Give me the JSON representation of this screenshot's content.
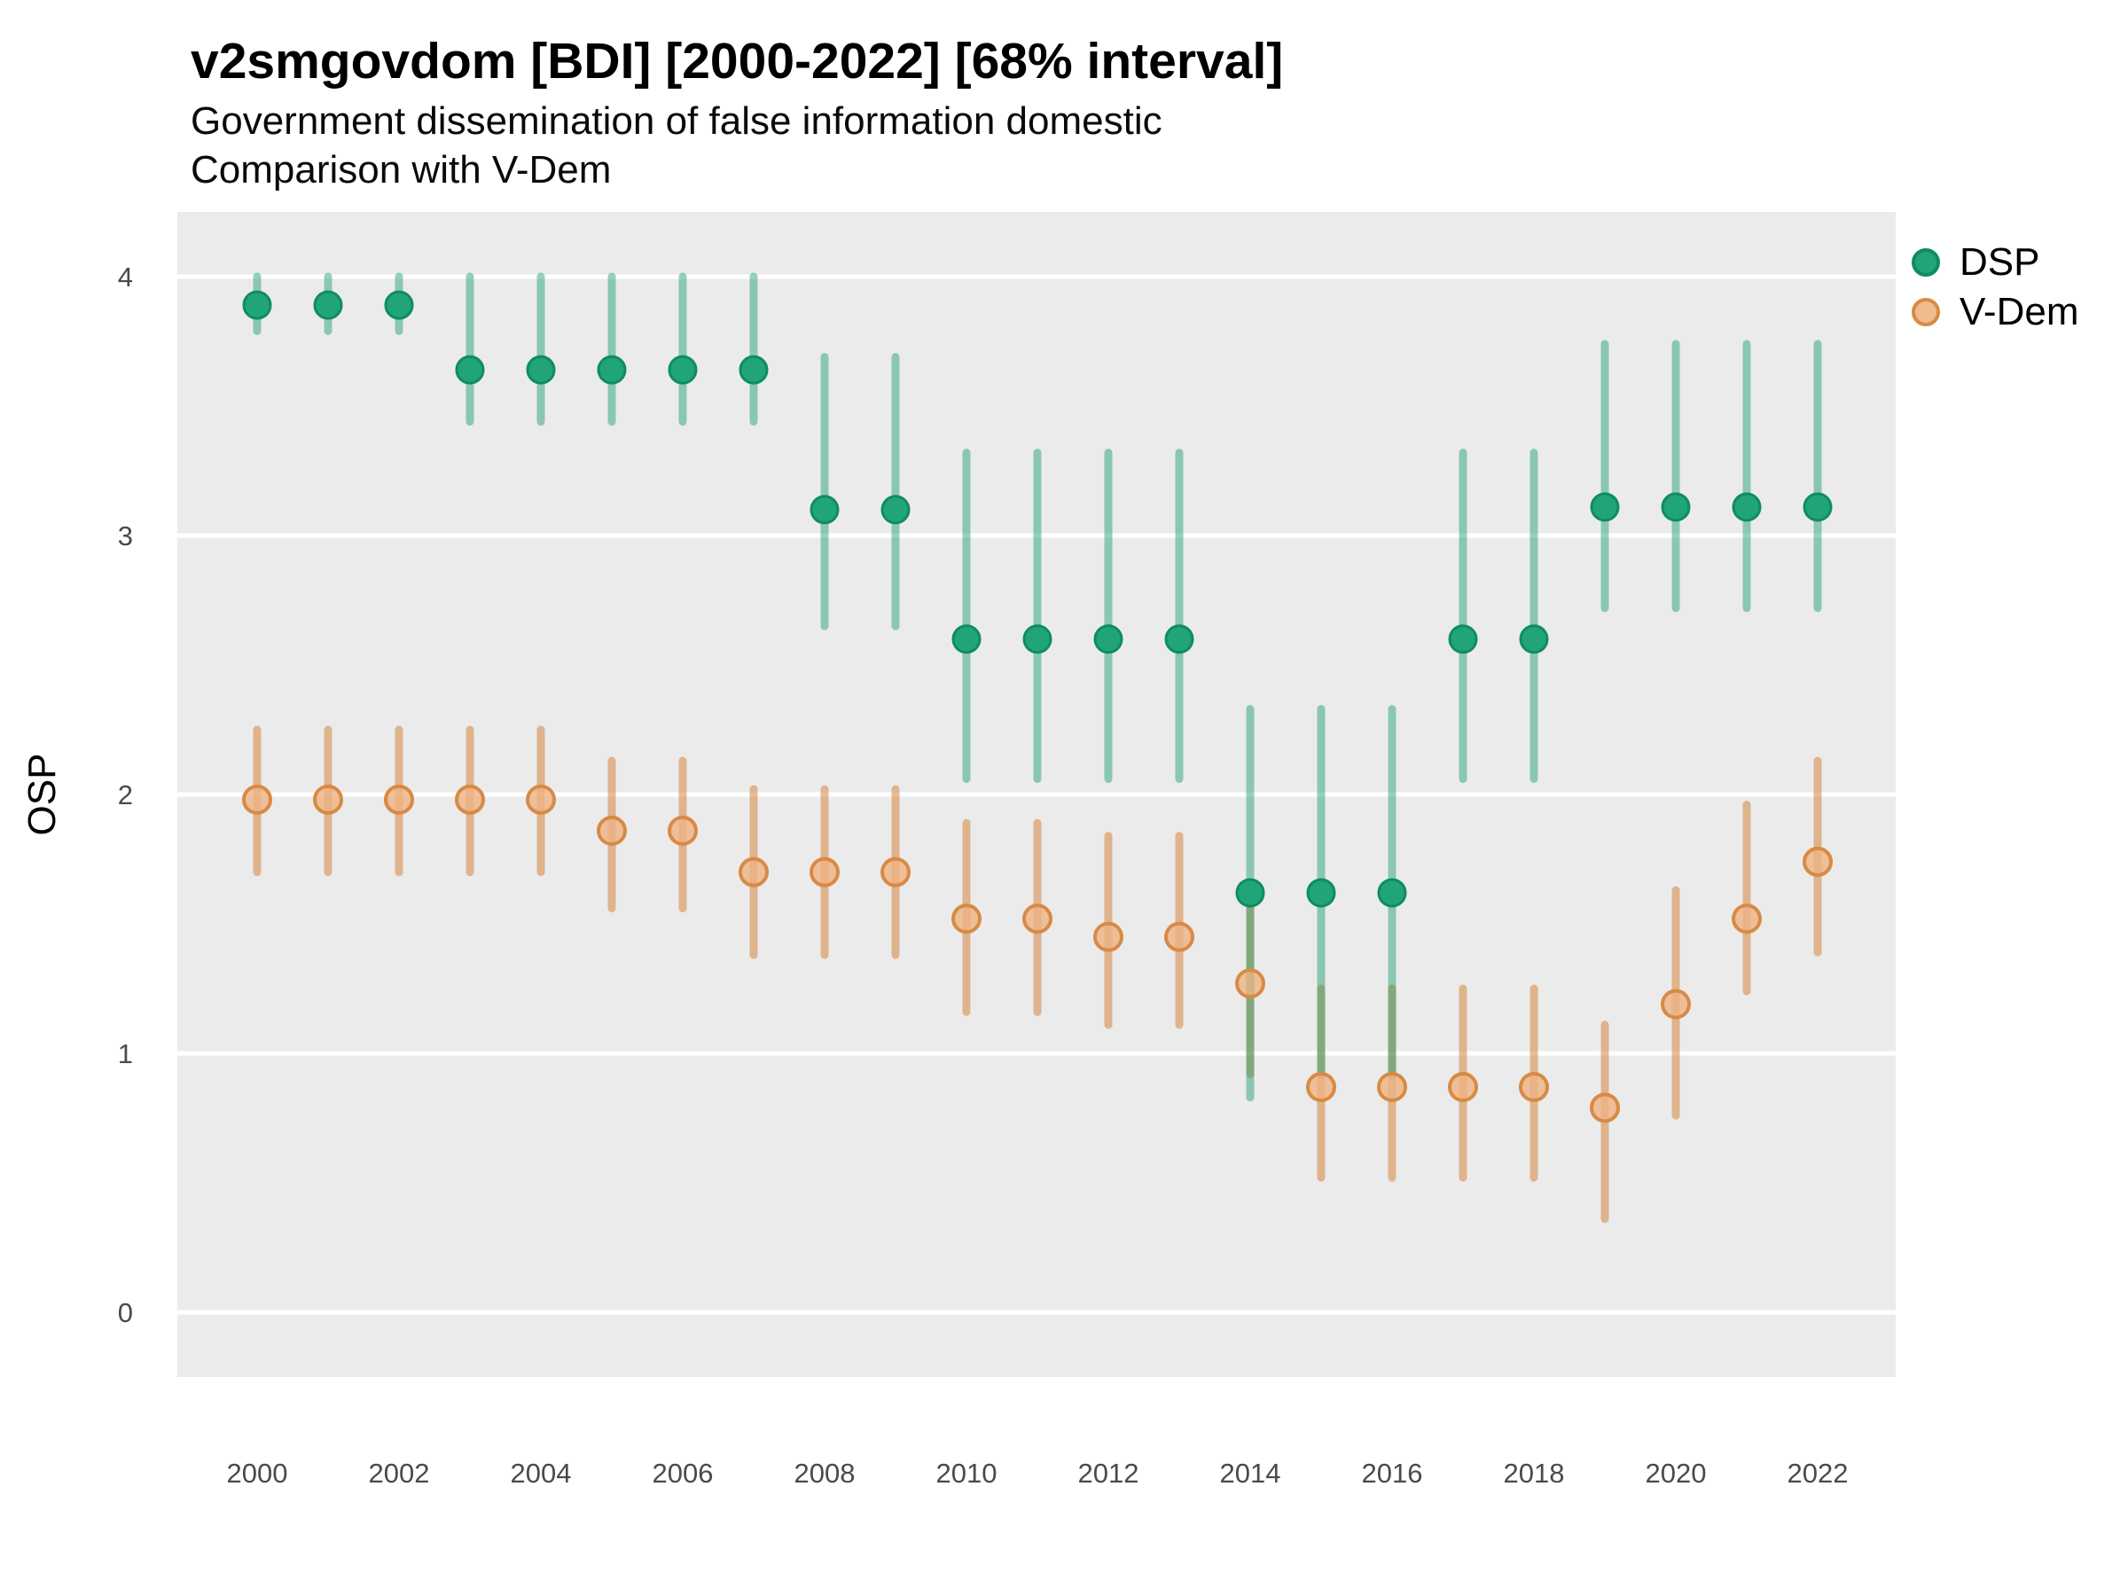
{
  "title": "v2smgovdom [BDI] [2000-2022] [68% interval]",
  "subtitle": [
    "Government dissemination of false information domestic",
    "Comparison with V-Dem"
  ],
  "axes": {
    "y_label": "OSP",
    "y_ticks": [
      4,
      3,
      2,
      1,
      0
    ],
    "x_ticks": [
      2000,
      2002,
      2004,
      2006,
      2008,
      2010,
      2012,
      2014,
      2016,
      2018,
      2020,
      2022
    ]
  },
  "legend": {
    "items": [
      {
        "id": "dsp",
        "label": "DSP",
        "fill": "#21a478",
        "stroke": "#0f8c61"
      },
      {
        "id": "vdem",
        "label": "V-Dem",
        "fill": "#f0bb8f",
        "stroke": "#d88a44"
      }
    ]
  },
  "colors": {
    "panel_background": "#ebebeb",
    "gridline": "#ffffff",
    "axis_text": "#4a4a4a",
    "text": "#000000",
    "dsp_point_fill": "#21a478",
    "dsp_point_stroke": "#0f8c61",
    "dsp_interval": "rgba(21,156,106,0.45)",
    "vdem_point_fill": "#edb383",
    "vdem_point_stroke": "#d88a44",
    "vdem_interval": "rgba(214,133,62,0.55)"
  },
  "chart_data": {
    "type": "scatter",
    "subtype": "pointrange",
    "interval": "68%",
    "title": "v2smgovdom [BDI] [2000-2022] [68% interval]",
    "xlabel": "",
    "ylabel": "OSP",
    "xlim": [
      1998.9,
      2023.1
    ],
    "ylim": [
      -0.25,
      4.25
    ],
    "grid": "major-y only, white on gray panel",
    "legend_position": "right-top",
    "x": [
      2000,
      2001,
      2002,
      2003,
      2004,
      2005,
      2006,
      2007,
      2008,
      2009,
      2010,
      2011,
      2012,
      2013,
      2014,
      2015,
      2016,
      2017,
      2018,
      2019,
      2020,
      2021,
      2022
    ],
    "series": [
      {
        "name": "DSP",
        "estimates": [
          3.89,
          3.89,
          3.89,
          3.64,
          3.64,
          3.64,
          3.64,
          3.64,
          3.1,
          3.1,
          2.6,
          2.6,
          2.6,
          2.6,
          1.62,
          1.62,
          1.62,
          2.6,
          2.6,
          3.11,
          3.11,
          3.11,
          3.11
        ],
        "lower": [
          3.79,
          3.79,
          3.79,
          3.44,
          3.44,
          3.44,
          3.44,
          3.44,
          2.65,
          2.65,
          2.06,
          2.06,
          2.06,
          2.06,
          0.83,
          0.92,
          0.92,
          2.06,
          2.06,
          2.72,
          2.72,
          2.72,
          2.72
        ],
        "upper": [
          4.0,
          4.0,
          4.0,
          4.0,
          4.0,
          4.0,
          4.0,
          4.0,
          3.69,
          3.69,
          3.32,
          3.32,
          3.32,
          3.32,
          2.33,
          2.33,
          2.33,
          3.32,
          3.32,
          3.74,
          3.74,
          3.74,
          3.74
        ]
      },
      {
        "name": "V-Dem",
        "estimates": [
          1.98,
          1.98,
          1.98,
          1.98,
          1.98,
          1.86,
          1.86,
          1.7,
          1.7,
          1.7,
          1.52,
          1.52,
          1.45,
          1.45,
          1.27,
          0.87,
          0.87,
          0.87,
          0.87,
          0.79,
          1.19,
          1.52,
          1.74
        ],
        "lower": [
          1.7,
          1.7,
          1.7,
          1.7,
          1.7,
          1.56,
          1.56,
          1.38,
          1.38,
          1.38,
          1.16,
          1.16,
          1.11,
          1.11,
          0.92,
          0.52,
          0.52,
          0.52,
          0.52,
          0.36,
          0.76,
          1.24,
          1.39
        ],
        "upper": [
          2.25,
          2.25,
          2.25,
          2.25,
          2.25,
          2.13,
          2.13,
          2.02,
          2.02,
          2.02,
          1.89,
          1.89,
          1.84,
          1.84,
          1.57,
          1.25,
          1.25,
          1.25,
          1.25,
          1.11,
          1.63,
          1.96,
          2.13
        ]
      }
    ]
  }
}
